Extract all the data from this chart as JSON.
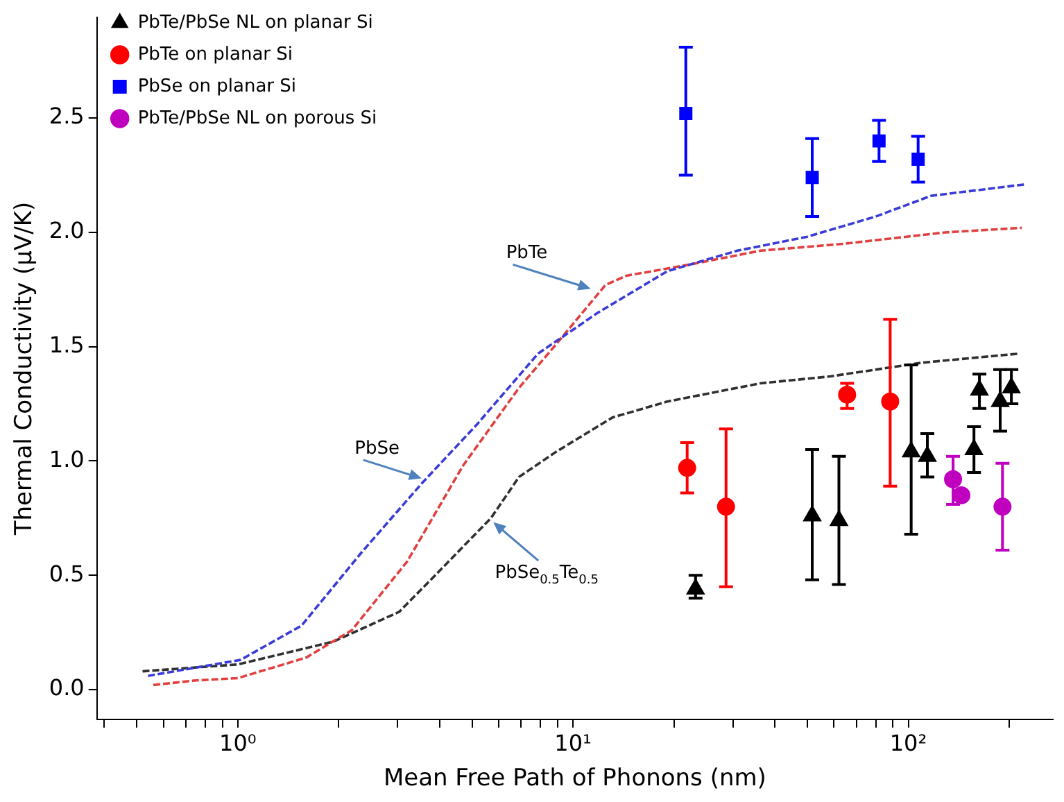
{
  "chart_data": {
    "type": "scatter",
    "xlabel": "Mean Free Path of Phonons (nm)",
    "ylabel": "Thermal Conductivity (μV/K)",
    "log": "x",
    "legend": "top left",
    "grid": false,
    "xlim": [
      0.38,
      270
    ],
    "ylim": [
      -0.13,
      2.94
    ],
    "xticks": [
      {
        "value": 0.4,
        "label": null
      },
      {
        "value": 0.5,
        "label": null
      },
      {
        "value": 0.6,
        "label": null
      },
      {
        "value": 0.7,
        "label": null
      },
      {
        "value": 0.8,
        "label": null
      },
      {
        "value": 0.9,
        "label": null
      },
      {
        "value": 1,
        "label": "10⁰"
      },
      {
        "value": 2,
        "label": null
      },
      {
        "value": 3,
        "label": null
      },
      {
        "value": 4,
        "label": null
      },
      {
        "value": 5,
        "label": null
      },
      {
        "value": 6,
        "label": null
      },
      {
        "value": 7,
        "label": null
      },
      {
        "value": 8,
        "label": null
      },
      {
        "value": 9,
        "label": null
      },
      {
        "value": 10,
        "label": "10¹"
      },
      {
        "value": 20,
        "label": null
      },
      {
        "value": 30,
        "label": null
      },
      {
        "value": 40,
        "label": null
      },
      {
        "value": 50,
        "label": null
      },
      {
        "value": 60,
        "label": null
      },
      {
        "value": 70,
        "label": null
      },
      {
        "value": 80,
        "label": null
      },
      {
        "value": 90,
        "label": null
      },
      {
        "value": 100,
        "label": "10²"
      },
      {
        "value": 200,
        "label": null
      }
    ],
    "yticks": [
      {
        "value": 0,
        "label": "0.0"
      },
      {
        "value": 0.5,
        "label": "0.5"
      },
      {
        "value": 1,
        "label": "1.0"
      },
      {
        "value": 1.5,
        "label": "1.5"
      },
      {
        "value": 2,
        "label": "2.0"
      },
      {
        "value": 2.5,
        "label": "2.5"
      }
    ],
    "series": [
      {
        "name": "PbTe/PbSe NL on planar Si",
        "type": "scatter",
        "marker": "triangle",
        "color": "#000000",
        "x": [
          23.2,
          51.7,
          62.1,
          102,
          114,
          157,
          163,
          188,
          203
        ],
        "values": [
          0.44,
          0.76,
          0.74,
          1.04,
          1.02,
          1.05,
          1.31,
          1.26,
          1.32
        ],
        "errors": [
          [
            0.4,
            0.5
          ],
          [
            0.48,
            1.05
          ],
          [
            0.46,
            1.02
          ],
          [
            0.68,
            1.42
          ],
          [
            0.93,
            1.12
          ],
          [
            0.95,
            1.15
          ],
          [
            1.23,
            1.38
          ],
          [
            1.13,
            1.4
          ],
          [
            1.25,
            1.4
          ]
        ]
      },
      {
        "name": "PbTe on planar Si",
        "type": "scatter",
        "marker": "circle",
        "color": "#ff0000",
        "x": [
          21.9,
          28.6,
          65.7,
          88.3
        ],
        "values": [
          0.97,
          0.8,
          1.29,
          1.26
        ],
        "errors": [
          [
            0.86,
            1.08
          ],
          [
            0.45,
            1.14
          ],
          [
            1.23,
            1.34
          ],
          [
            0.89,
            1.62
          ]
        ]
      },
      {
        "name": "PbSe on planar Si",
        "type": "scatter",
        "marker": "square",
        "color": "#0000ff",
        "x": [
          21.7,
          51.7,
          81.8,
          107
        ],
        "values": [
          2.52,
          2.24,
          2.4,
          2.32
        ],
        "errors": [
          [
            2.25,
            2.81
          ],
          [
            2.07,
            2.41
          ],
          [
            2.31,
            2.49
          ],
          [
            2.22,
            2.42
          ]
        ]
      },
      {
        "name": "PbTe/PbSe NL on porous Si",
        "type": "scatter",
        "marker": "circle",
        "color": "#bf00bf",
        "x": [
          136,
          144,
          191
        ],
        "values": [
          0.92,
          0.85,
          0.8
        ],
        "errors": [
          [
            0.81,
            1.02
          ],
          null,
          [
            0.61,
            0.99
          ]
        ]
      },
      {
        "type": "line",
        "marker": "none",
        "line_style": "dashed",
        "color": "#3b3bd6",
        "x": [
          0.54,
          1.02,
          1.55,
          2.34,
          3.53,
          5.17,
          7.87,
          11.9,
          19.1,
          30.9,
          49.7,
          80.2,
          117,
          223
        ],
        "values": [
          0.06,
          0.13,
          0.28,
          0.6,
          0.9,
          1.16,
          1.47,
          1.65,
          1.83,
          1.92,
          1.98,
          2.07,
          2.16,
          2.21
        ]
      },
      {
        "type": "line",
        "marker": "none",
        "line_style": "dashed",
        "color": "#e04040",
        "x": [
          0.56,
          0.75,
          1.0,
          1.6,
          2.19,
          3.2,
          4.7,
          6.9,
          8.9,
          12.5,
          14.4,
          22.4,
          36.3,
          64.2,
          129,
          218
        ],
        "values": [
          0.02,
          0.04,
          0.05,
          0.14,
          0.26,
          0.56,
          0.98,
          1.32,
          1.51,
          1.77,
          1.81,
          1.86,
          1.92,
          1.95,
          2.0,
          2.02
        ]
      },
      {
        "type": "line",
        "marker": "none",
        "line_style": "dashed",
        "color": "#303030",
        "x": [
          0.52,
          1.0,
          1.93,
          3.03,
          3.88,
          5.69,
          6.9,
          8.9,
          13.1,
          19.1,
          36.3,
          58.5,
          110,
          215
        ],
        "values": [
          0.08,
          0.11,
          0.21,
          0.34,
          0.5,
          0.75,
          0.93,
          1.04,
          1.19,
          1.26,
          1.34,
          1.37,
          1.43,
          1.47
        ]
      }
    ],
    "annotations": [
      {
        "text": "PbTe",
        "x": 11.5,
        "y": 1.75
      },
      {
        "text": "PbSe",
        "x": 3.6,
        "y": 0.92
      },
      {
        "text": "PbSe$_{0.5}$Te$_{0.5}$",
        "x": 5.7,
        "y": 0.74
      }
    ]
  }
}
